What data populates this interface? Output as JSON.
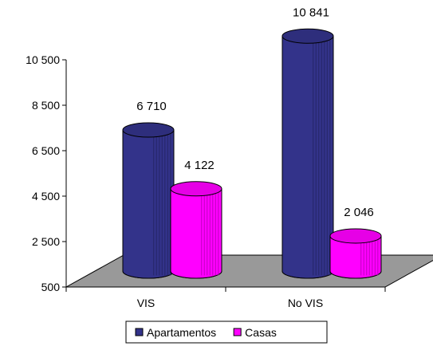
{
  "chart_data": {
    "type": "bar",
    "categories": [
      "VIS",
      "No VIS"
    ],
    "series": [
      {
        "name": "Apartamentos",
        "values": [
          6710,
          10841
        ],
        "color": "#33338a"
      },
      {
        "name": "Casas",
        "values": [
          4122,
          2046
        ],
        "color": "#ff00ff"
      }
    ],
    "data_labels": [
      "6 710",
      "4 122",
      "10 841",
      "2 046"
    ],
    "y_ticks": [
      500,
      2500,
      4500,
      6500,
      8500,
      10500
    ],
    "y_tick_labels": [
      "500",
      "2 500",
      "4 500",
      "6 500",
      "8 500",
      "10 500"
    ],
    "ylim": [
      500,
      10500
    ],
    "title": "",
    "xlabel": "",
    "ylabel": "",
    "grid": false,
    "legend": "bottom",
    "bar_style": "3d-cylinder",
    "floor_color": "#999999"
  }
}
